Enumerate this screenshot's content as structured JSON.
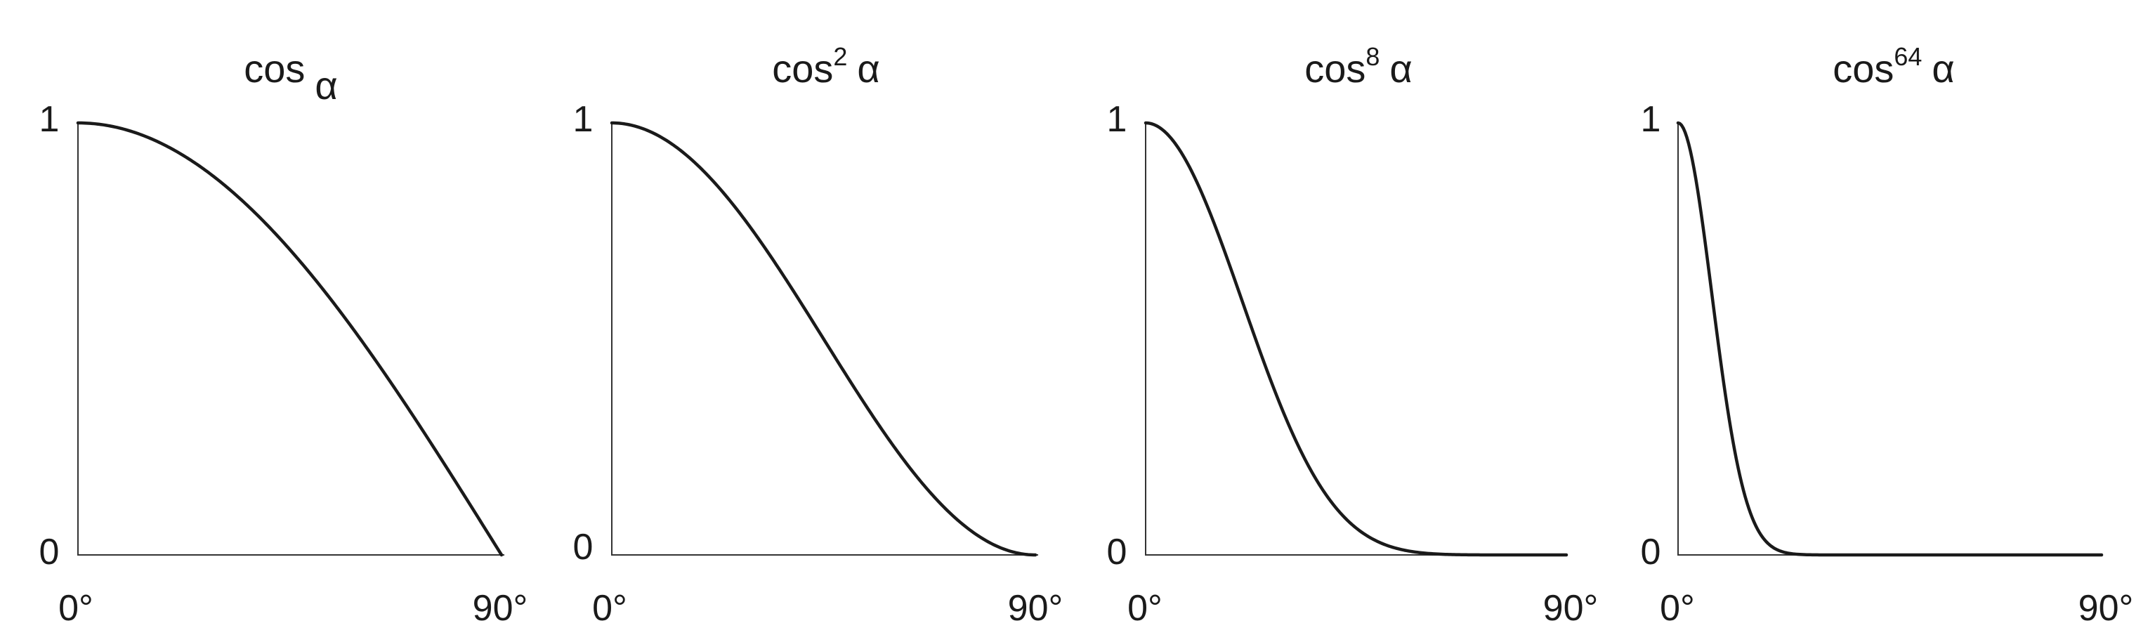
{
  "chart_data": [
    {
      "type": "line",
      "title": {
        "base": "cos",
        "exponent": "",
        "symbol": "α"
      },
      "function": "cos^1",
      "exponent_value": 1,
      "x_ticks": [
        "0°",
        "90°"
      ],
      "y_ticks": [
        "0",
        "1"
      ],
      "xlim": [
        0,
        90
      ],
      "ylim": [
        0,
        1
      ],
      "x": [
        0,
        10,
        20,
        30,
        40,
        50,
        60,
        70,
        80,
        90
      ],
      "series": [
        {
          "values": [
            1.0,
            0.985,
            0.94,
            0.866,
            0.766,
            0.643,
            0.5,
            0.342,
            0.174,
            0.0
          ]
        }
      ],
      "grid": false
    },
    {
      "type": "line",
      "title": {
        "base": "cos",
        "exponent": "2",
        "symbol": "α"
      },
      "function": "cos^2",
      "exponent_value": 2,
      "x_ticks": [
        "0°",
        "90°"
      ],
      "y_ticks": [
        "0",
        "1"
      ],
      "xlim": [
        0,
        90
      ],
      "ylim": [
        0,
        1
      ],
      "x": [
        0,
        10,
        20,
        30,
        40,
        50,
        60,
        70,
        80,
        90
      ],
      "series": [
        {
          "values": [
            1.0,
            0.97,
            0.883,
            0.75,
            0.587,
            0.413,
            0.25,
            0.117,
            0.03,
            0.0
          ]
        }
      ],
      "grid": false
    },
    {
      "type": "line",
      "title": {
        "base": "cos",
        "exponent": "8",
        "symbol": "α"
      },
      "function": "cos^8",
      "exponent_value": 8,
      "x_ticks": [
        "0°",
        "90°"
      ],
      "y_ticks": [
        "0",
        "1"
      ],
      "xlim": [
        0,
        90
      ],
      "ylim": [
        0,
        1
      ],
      "x": [
        0,
        10,
        20,
        30,
        40,
        50,
        60,
        70,
        80,
        90
      ],
      "series": [
        {
          "values": [
            1.0,
            0.885,
            0.61,
            0.316,
            0.119,
            0.029,
            0.004,
            0.0,
            0.0,
            0.0
          ]
        }
      ],
      "grid": false
    },
    {
      "type": "line",
      "title": {
        "base": "cos",
        "exponent": "64",
        "symbol": "α"
      },
      "function": "cos^64",
      "exponent_value": 64,
      "x_ticks": [
        "0°",
        "90°"
      ],
      "y_ticks": [
        "0",
        "1"
      ],
      "xlim": [
        0,
        90
      ],
      "ylim": [
        0,
        1
      ],
      "x": [
        0,
        5,
        10,
        15,
        20,
        25,
        30,
        40,
        60,
        90
      ],
      "series": [
        {
          "values": [
            1.0,
            0.784,
            0.376,
            0.108,
            0.019,
            0.002,
            0.0,
            0.0,
            0.0,
            0.0
          ]
        }
      ],
      "grid": false
    }
  ]
}
